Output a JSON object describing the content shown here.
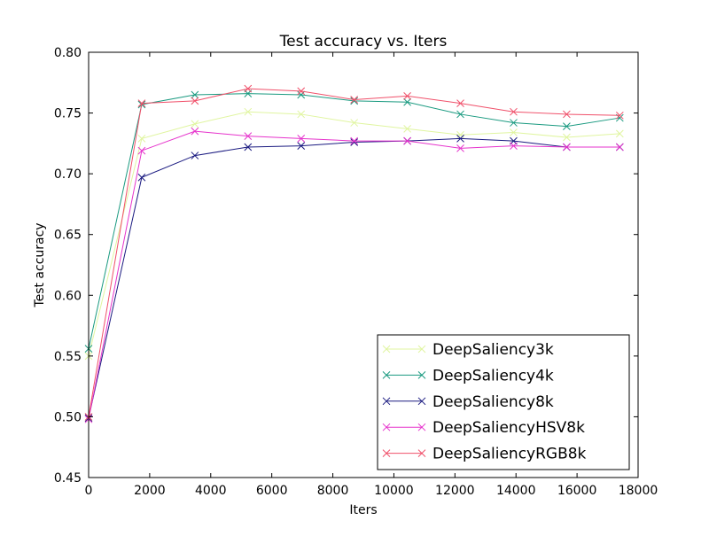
{
  "chart_data": {
    "type": "line",
    "title": "Test accuracy  vs. Iters",
    "xlabel": "Iters",
    "ylabel": "Test accuracy",
    "xlim": [
      0,
      18000
    ],
    "ylim": [
      0.45,
      0.8
    ],
    "xticks": [
      0,
      2000,
      4000,
      6000,
      8000,
      10000,
      12000,
      14000,
      16000,
      18000
    ],
    "yticks": [
      0.45,
      0.5,
      0.55,
      0.6,
      0.65,
      0.7,
      0.75,
      0.8
    ],
    "xtick_labels": [
      "0",
      "2000",
      "4000",
      "6000",
      "8000",
      "10000",
      "12000",
      "14000",
      "16000",
      "18000"
    ],
    "ytick_labels": [
      "0.45",
      "0.50",
      "0.55",
      "0.60",
      "0.65",
      "0.70",
      "0.75",
      "0.80"
    ],
    "grid": false,
    "legend_position": "bottom-right",
    "marker": "x",
    "x": [
      0,
      1740,
      3480,
      5220,
      6960,
      8700,
      10440,
      12180,
      13920,
      15660,
      17400
    ],
    "series": [
      {
        "name": "DeepSaliency3k",
        "color": "#e0f5a0",
        "values": [
          0.55,
          0.729,
          0.741,
          0.751,
          0.749,
          0.742,
          0.737,
          0.732,
          0.734,
          0.73,
          0.733
        ]
      },
      {
        "name": "DeepSaliency4k",
        "color": "#1a9a80",
        "values": [
          0.556,
          0.757,
          0.765,
          0.766,
          0.765,
          0.76,
          0.759,
          0.749,
          0.742,
          0.739,
          0.746
        ]
      },
      {
        "name": "DeepSaliency8k",
        "color": "#1a1a80",
        "values": [
          0.499,
          0.697,
          0.715,
          0.722,
          0.723,
          0.726,
          0.727,
          0.729,
          0.727,
          0.722,
          0.722
        ]
      },
      {
        "name": "DeepSaliencyHSV8k",
        "color": "#e633cc",
        "values": [
          0.498,
          0.719,
          0.735,
          0.731,
          0.729,
          0.727,
          0.727,
          0.721,
          0.723,
          0.722,
          0.722
        ]
      },
      {
        "name": "DeepSaliencyRGB8k",
        "color": "#f0506a",
        "values": [
          0.5,
          0.758,
          0.76,
          0.77,
          0.768,
          0.761,
          0.764,
          0.758,
          0.751,
          0.749,
          0.748
        ]
      }
    ]
  }
}
